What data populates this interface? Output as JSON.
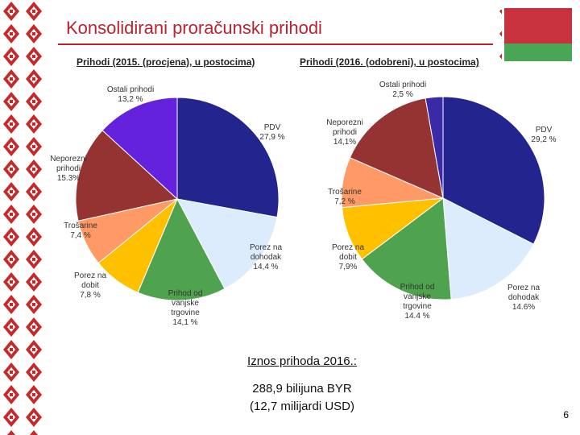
{
  "slide": {
    "title": "Konsolidirani proračunski prihodi",
    "footer_heading": "Iznos prihoda 2016.:",
    "footer_lines": [
      "288,9 bilijuna BYR",
      "(12,7 milijardi USD)"
    ],
    "page_number": 6
  },
  "chart_data": [
    {
      "type": "pie",
      "title": "Prihodi (2015. (procjena), u postocima)",
      "categories": [
        "PDV",
        "Porez na dohodak",
        "Prihod od vanjske trgovine",
        "Porez na dobit",
        "Trošarine",
        "Neporezni prihodi",
        "Ostali prihodi"
      ],
      "values": [
        27.9,
        14.4,
        14.1,
        7.8,
        7.4,
        15.3,
        13.2
      ],
      "value_labels": [
        "27,9 %",
        "14,4 %",
        "14,1 %",
        "7,8 %",
        "7,4 %",
        "15.3%",
        "13,2 %"
      ],
      "colors": [
        "#24248f",
        "#dcecfc",
        "#4fa34f",
        "#ffc000",
        "#ff9966",
        "#953232",
        "#6422dc"
      ]
    },
    {
      "type": "pie",
      "title": "Prihodi (2016. (odobreni), u postocima)",
      "categories": [
        "PDV",
        "Porez na dohodak",
        "Prihod od vanjske trgovine",
        "Porez na dobit",
        "Trošarine",
        "Neporezni prihodi",
        "Ostali prihodi"
      ],
      "values": [
        29.2,
        14.6,
        14.4,
        7.9,
        7.2,
        14.1,
        2.5
      ],
      "value_labels": [
        "29,2 %",
        "14.6%",
        "14.4 %",
        "7,9%",
        "7,2 %",
        "14,1%",
        "2,5 %"
      ],
      "colors": [
        "#24248f",
        "#dcecfc",
        "#4fa34f",
        "#ffc000",
        "#ff9966",
        "#953232",
        "#3a2aa8"
      ]
    }
  ]
}
